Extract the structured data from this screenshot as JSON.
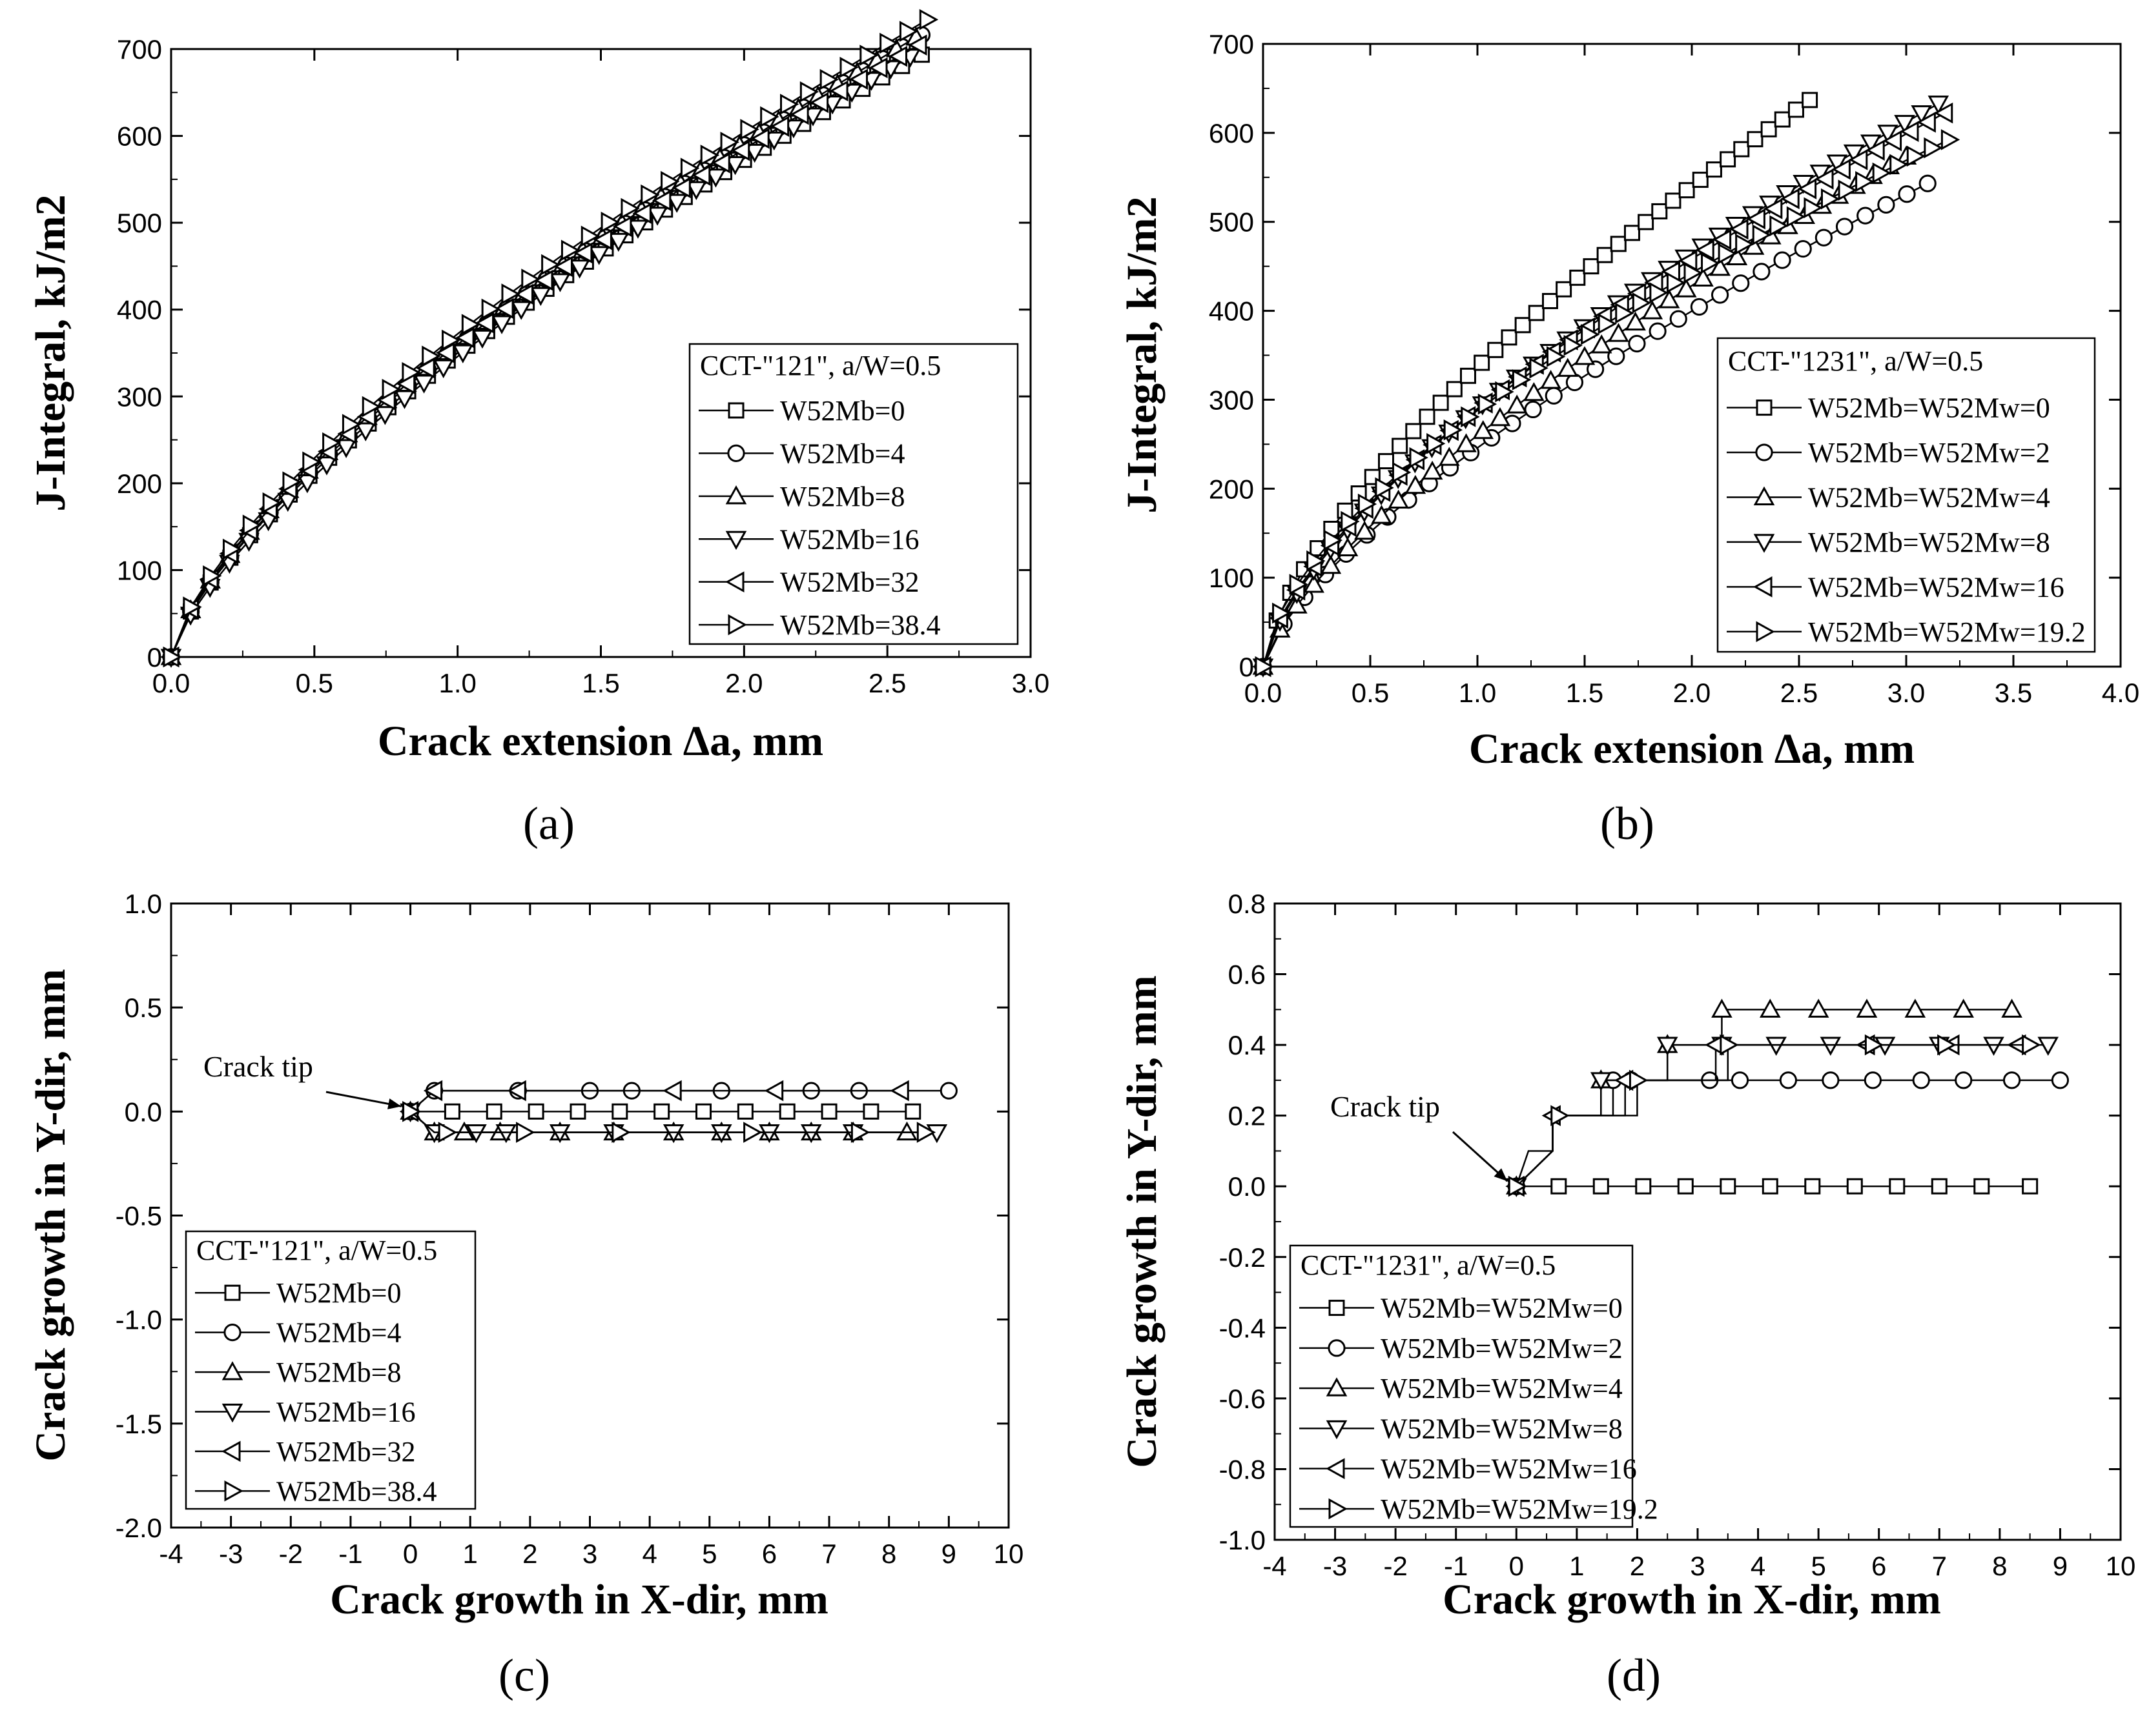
{
  "chart_data": [
    {
      "type": "line",
      "panel_label": "(a)",
      "xlabel": "Crack extension Δa, mm",
      "ylabel": "J-Integral, kJ/m2",
      "xlim": [
        0,
        3
      ],
      "ylim": [
        0,
        700
      ],
      "xticks": [
        "0.0",
        "0.5",
        "1.0",
        "1.5",
        "2.0",
        "2.5",
        "3.0"
      ],
      "yticks": [
        "0",
        "100",
        "200",
        "300",
        "400",
        "500",
        "600",
        "700"
      ],
      "grid": false,
      "legend": {
        "placement": "bottom-right",
        "title": "CCT-\"121\", a/W=0.5",
        "entries": [
          "W52Mb=0",
          "W52Mb=4",
          "W52Mb=8",
          "W52Mb=16",
          "W52Mb=32",
          "W52Mb=38.4"
        ]
      },
      "series": [
        {
          "name": "W52Mb=0",
          "marker": "square",
          "a": 350,
          "n": 0.71,
          "x_end": 2.62,
          "points": 38
        },
        {
          "name": "W52Mb=4",
          "marker": "circle",
          "a": 358,
          "n": 0.72,
          "x_end": 2.62,
          "points": 38
        },
        {
          "name": "W52Mb=8",
          "marker": "triangle-up",
          "a": 362,
          "n": 0.71,
          "x_end": 2.6,
          "points": 38
        },
        {
          "name": "W52Mb=16",
          "marker": "triangle-down",
          "a": 346,
          "n": 0.73,
          "x_end": 2.58,
          "points": 38
        },
        {
          "name": "W52Mb=32",
          "marker": "triangle-left",
          "a": 360,
          "n": 0.7,
          "x_end": 2.61,
          "points": 38
        },
        {
          "name": "W52Mb=38.4",
          "marker": "triangle-right",
          "a": 372,
          "n": 0.7,
          "x_end": 2.64,
          "points": 38
        }
      ]
    },
    {
      "type": "line",
      "panel_label": "(b)",
      "xlabel": "Crack extension Δa, mm",
      "ylabel": "J-Integral, kJ/m2",
      "xlim": [
        0,
        4
      ],
      "ylim": [
        0,
        700
      ],
      "xticks": [
        "0.0",
        "0.5",
        "1.0",
        "1.5",
        "2.0",
        "2.5",
        "3.0",
        "3.5",
        "4.0"
      ],
      "yticks": [
        "0",
        "100",
        "200",
        "300",
        "400",
        "500",
        "600",
        "700"
      ],
      "grid": false,
      "legend": {
        "placement": "bottom-right",
        "title": "CCT-\"1231\", a/W=0.5",
        "entries": [
          "W52Mb=W52Mw=0",
          "W52Mb=W52Mw=2",
          "W52Mb=W52Mw=4",
          "W52Mb=W52Mw=8",
          "W52Mb=W52Mw=16",
          "W52Mb=W52Mw=19.2"
        ]
      },
      "series": [
        {
          "name": "W52Mb=W52Mw=0",
          "marker": "square",
          "a": 337,
          "n": 0.68,
          "x_end": 2.55,
          "points": 40
        },
        {
          "name": "W52Mb=W52Mw=2",
          "marker": "circle",
          "a": 246,
          "n": 0.7,
          "x_end": 3.1,
          "points": 32
        },
        {
          "name": "W52Mb=W52Mw=4",
          "marker": "triangle-up",
          "a": 260,
          "n": 0.72,
          "x_end": 3.0,
          "points": 38
        },
        {
          "name": "W52Mb=W52Mw=8",
          "marker": "triangle-down",
          "a": 290,
          "n": 0.68,
          "x_end": 3.15,
          "points": 40
        },
        {
          "name": "W52Mb=W52Mw=16",
          "marker": "triangle-left",
          "a": 290,
          "n": 0.66,
          "x_end": 3.18,
          "points": 40
        },
        {
          "name": "W52Mb=W52Mw=19.2",
          "marker": "triangle-right",
          "a": 288,
          "n": 0.62,
          "x_end": 3.2,
          "points": 40
        }
      ]
    },
    {
      "type": "line",
      "panel_label": "(c)",
      "xlabel": "Crack growth in X-dir, mm",
      "ylabel": "Crack growth in Y-dir, mm",
      "xlim": [
        -4,
        10
      ],
      "ylim": [
        -2,
        1
      ],
      "xticks": [
        "-4",
        "-3",
        "-2",
        "-1",
        "0",
        "1",
        "2",
        "3",
        "4",
        "5",
        "6",
        "7",
        "8",
        "9",
        "10"
      ],
      "yticks": [
        "-2.0",
        "-1.5",
        "-1.0",
        "-0.5",
        "0.0",
        "0.5",
        "1.0"
      ],
      "grid": false,
      "annotation": "Crack tip",
      "legend": {
        "placement": "bottom-left",
        "title": "CCT-\"121\", a/W=0.5",
        "entries": [
          "W52Mb=0",
          "W52Mb=4",
          "W52Mb=8",
          "W52Mb=16",
          "W52Mb=32",
          "W52Mb=38.4"
        ]
      },
      "series": [
        {
          "name": "W52Mb=0",
          "marker": "square",
          "path": [
            [
              0,
              0
            ],
            [
              8.4,
              0
            ]
          ],
          "markers_at": [
            0,
            0.7,
            1.4,
            2.1,
            2.8,
            3.5,
            4.2,
            4.9,
            5.6,
            6.3,
            7.0,
            7.7,
            8.4
          ]
        },
        {
          "name": "W52Mb=4",
          "marker": "circle",
          "path": [
            [
              0,
              0
            ],
            [
              0.4,
              0.1
            ],
            [
              9.0,
              0.1
            ]
          ],
          "markers_at": [
            0.4,
            1.8,
            3.0,
            3.7,
            5.2,
            6.7,
            7.5,
            9.0
          ]
        },
        {
          "name": "W52Mb=8",
          "marker": "triangle-up",
          "path": [
            [
              0,
              0
            ],
            [
              0.4,
              -0.1
            ],
            [
              8.3,
              -0.1
            ]
          ],
          "markers_at": [
            0.4,
            0.9,
            1.5,
            2.5,
            3.4,
            4.4,
            5.2,
            6.0,
            6.7,
            7.4,
            8.3
          ]
        },
        {
          "name": "W52Mb=16",
          "marker": "triangle-down",
          "path": [
            [
              0,
              0
            ],
            [
              0.4,
              -0.1
            ],
            [
              8.8,
              -0.1
            ]
          ],
          "markers_at": [
            0.4,
            1.1,
            1.6,
            2.5,
            3.4,
            4.4,
            5.2,
            6.0,
            6.7,
            7.4,
            8.8
          ]
        },
        {
          "name": "W52Mb=32",
          "marker": "triangle-left",
          "path": [
            [
              0,
              0
            ],
            [
              0.4,
              0.1
            ],
            [
              8.2,
              0.1
            ]
          ],
          "markers_at": [
            0.4,
            1.8,
            4.4,
            6.1,
            8.2
          ]
        },
        {
          "name": "W52Mb=38.4",
          "marker": "triangle-right",
          "path": [
            [
              0,
              0
            ],
            [
              0.4,
              -0.1
            ],
            [
              8.6,
              -0.1
            ]
          ],
          "markers_at": [
            0.6,
            1.9,
            3.5,
            5.7,
            7.5,
            8.6
          ]
        }
      ]
    },
    {
      "type": "line",
      "panel_label": "(d)",
      "xlabel": "Crack growth in X-dir, mm",
      "ylabel": "Crack growth in Y-dir, mm",
      "xlim": [
        -4,
        10
      ],
      "ylim": [
        -1,
        0.8
      ],
      "xticks": [
        "-4",
        "-3",
        "-2",
        "-1",
        "0",
        "1",
        "2",
        "3",
        "4",
        "5",
        "6",
        "7",
        "8",
        "9",
        "10"
      ],
      "yticks": [
        "-1.0",
        "-0.8",
        "-0.6",
        "-0.4",
        "-0.2",
        "0.0",
        "0.2",
        "0.4",
        "0.6",
        "0.8"
      ],
      "grid": false,
      "annotation": "Crack tip",
      "legend": {
        "placement": "bottom-left",
        "title": "CCT-\"1231\", a/W=0.5",
        "entries": [
          "W52Mb=W52Mw=0",
          "W52Mb=W52Mw=2",
          "W52Mb=W52Mw=4",
          "W52Mb=W52Mw=8",
          "W52Mb=W52Mw=16",
          "W52Mb=W52Mw=19.2"
        ]
      },
      "series": [
        {
          "name": "W52Mb=W52Mw=0",
          "marker": "square",
          "path": [
            [
              0,
              0
            ],
            [
              8.5,
              0
            ]
          ],
          "markers_at": [
            0,
            0.7,
            1.4,
            2.1,
            2.8,
            3.5,
            4.2,
            4.9,
            5.6,
            6.3,
            7.0,
            7.7,
            8.5
          ]
        },
        {
          "name": "W52Mb=W52Mw=2",
          "marker": "circle",
          "path": [
            [
              0,
              0
            ],
            [
              0.2,
              0.1
            ],
            [
              0.6,
              0.1
            ],
            [
              0.6,
              0.2
            ],
            [
              1.6,
              0.2
            ],
            [
              1.6,
              0.3
            ],
            [
              9.0,
              0.3
            ]
          ],
          "markers_at": [
            1.6,
            1.9,
            3.2,
            3.7,
            4.5,
            5.2,
            5.9,
            6.7,
            7.4,
            8.2,
            9.0
          ]
        },
        {
          "name": "W52Mb=W52Mw=4",
          "marker": "triangle-up",
          "path": [
            [
              0,
              0
            ],
            [
              0.6,
              0.1
            ],
            [
              0.6,
              0.2
            ],
            [
              1.4,
              0.2
            ],
            [
              1.4,
              0.3
            ],
            [
              2.5,
              0.3
            ],
            [
              2.5,
              0.4
            ],
            [
              3.4,
              0.4
            ],
            [
              3.4,
              0.5
            ],
            [
              8.2,
              0.5
            ]
          ],
          "markers_at": [
            1.4,
            2.5,
            3.4,
            4.2,
            5.0,
            5.8,
            6.6,
            7.4,
            8.2
          ]
        },
        {
          "name": "W52Mb=W52Mw=8",
          "marker": "triangle-down",
          "path": [
            [
              0,
              0
            ],
            [
              0.6,
              0.1
            ],
            [
              0.6,
              0.2
            ],
            [
              1.4,
              0.2
            ],
            [
              1.4,
              0.3
            ],
            [
              2.5,
              0.3
            ],
            [
              2.5,
              0.4
            ],
            [
              8.8,
              0.4
            ]
          ],
          "markers_at": [
            1.4,
            2.5,
            3.4,
            4.3,
            5.2,
            6.1,
            7.0,
            7.9,
            8.8
          ]
        },
        {
          "name": "W52Mb=W52Mw=16",
          "marker": "triangle-left",
          "path": [
            [
              0,
              0
            ],
            [
              0.6,
              0.1
            ],
            [
              0.6,
              0.2
            ],
            [
              1.8,
              0.2
            ],
            [
              1.8,
              0.3
            ],
            [
              3.3,
              0.3
            ],
            [
              3.3,
              0.4
            ],
            [
              8.3,
              0.4
            ]
          ],
          "markers_at": [
            0.6,
            1.8,
            3.3,
            5.8,
            7.2,
            8.3
          ]
        },
        {
          "name": "W52Mb=W52Mw=19.2",
          "marker": "triangle-right",
          "path": [
            [
              0,
              0
            ],
            [
              0.6,
              0.1
            ],
            [
              0.6,
              0.2
            ],
            [
              2.0,
              0.2
            ],
            [
              2.0,
              0.3
            ],
            [
              3.5,
              0.3
            ],
            [
              3.5,
              0.4
            ],
            [
              8.5,
              0.4
            ]
          ],
          "markers_at": [
            0.7,
            2.0,
            3.5,
            5.9,
            7.1,
            8.5
          ]
        }
      ]
    }
  ]
}
